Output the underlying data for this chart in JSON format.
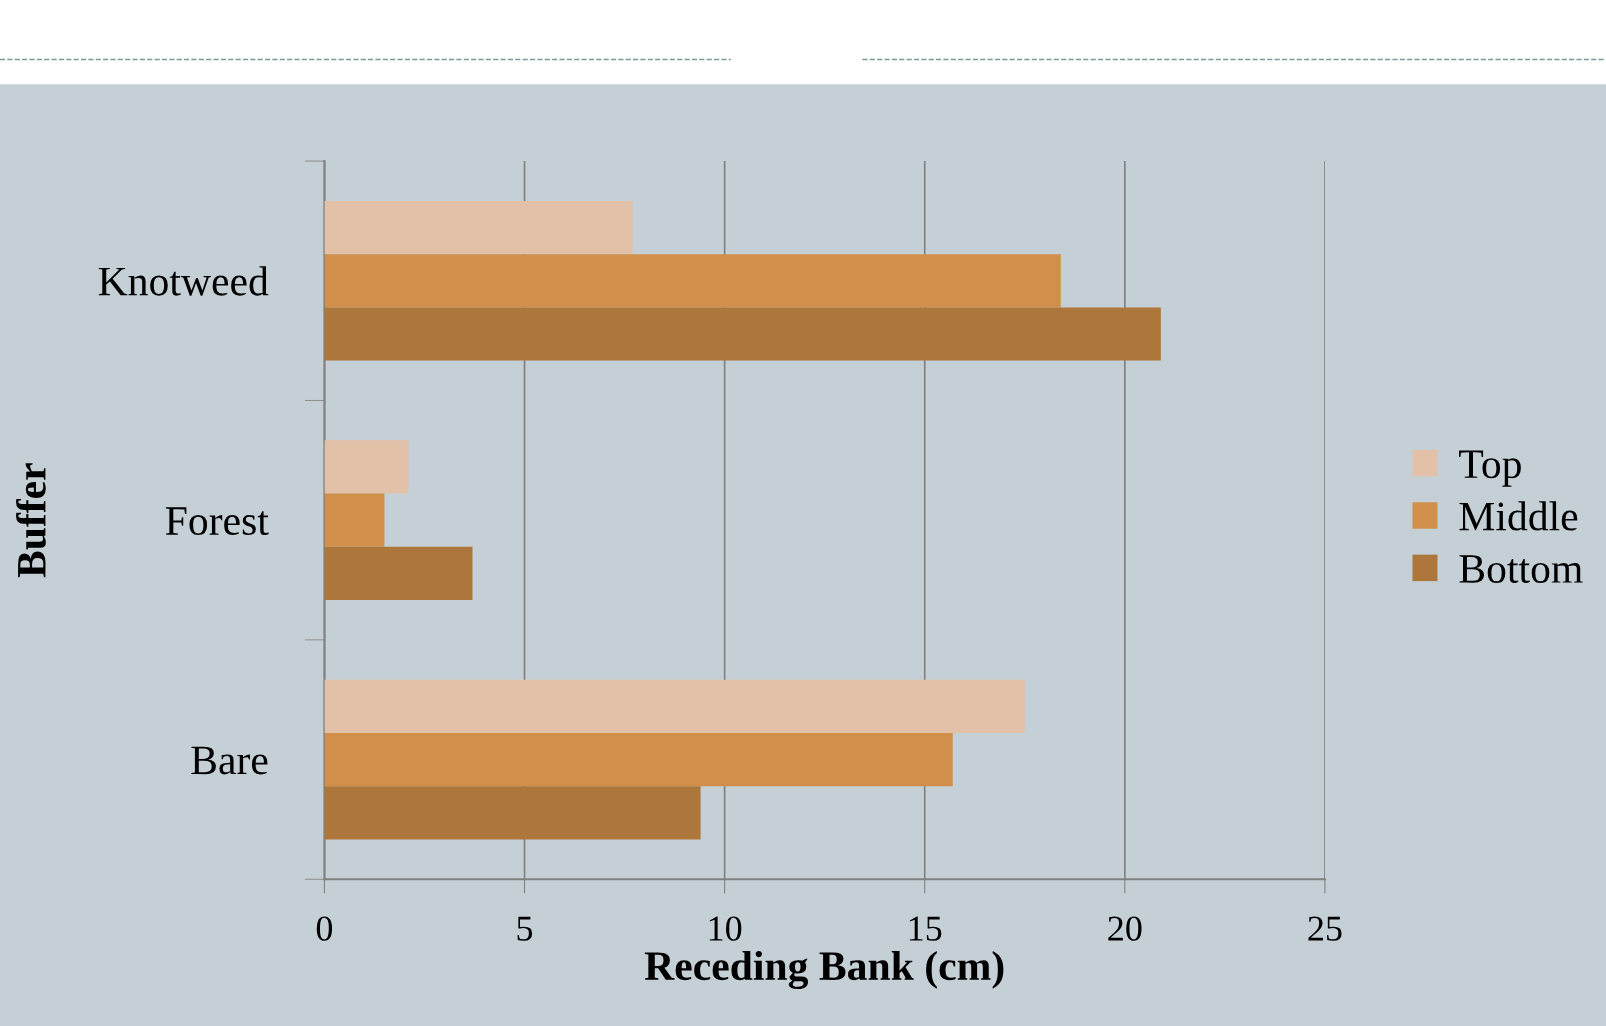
{
  "chart_data": {
    "type": "bar",
    "orientation": "horizontal",
    "xlabel": "Receding Bank (cm)",
    "ylabel": "Buffer",
    "categories": [
      "Knotweed",
      "Forest",
      "Bare"
    ],
    "series": [
      {
        "name": "Top",
        "color": "#e3c0a8",
        "values": [
          7.7,
          2.1,
          17.5
        ]
      },
      {
        "name": "Middle",
        "color": "#d08f4a",
        "values": [
          18.4,
          1.5,
          15.7
        ]
      },
      {
        "name": "Bottom",
        "color": "#ad773b",
        "values": [
          20.9,
          3.7,
          9.4
        ]
      }
    ],
    "xlim": [
      0,
      25
    ],
    "xticks": [
      0,
      5,
      10,
      15,
      20,
      25
    ],
    "grid": "x",
    "legend": "right"
  }
}
